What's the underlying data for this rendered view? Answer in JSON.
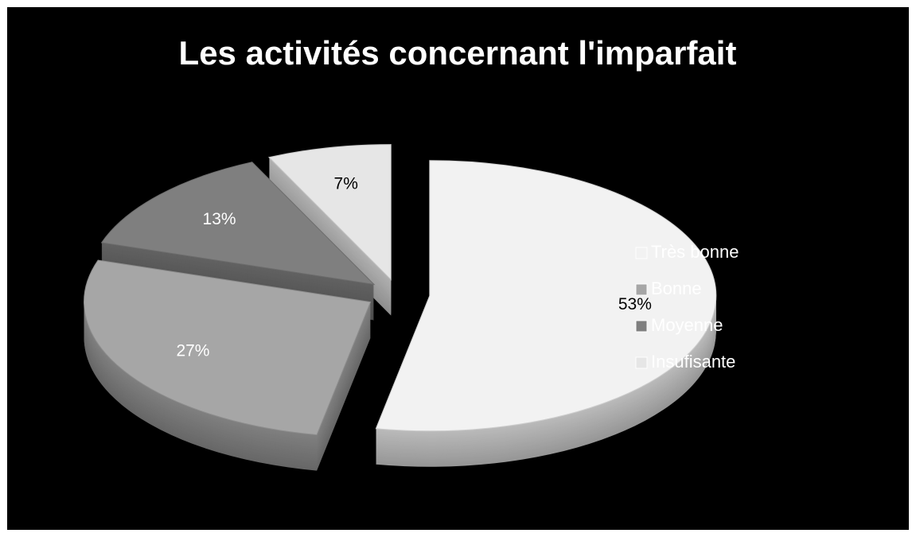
{
  "chart_data": {
    "type": "pie",
    "title": "Les activités concernant l'imparfait",
    "categories": [
      "Très bonne",
      "Bonne",
      "Moyenne",
      "Insufisante"
    ],
    "values": [
      53,
      27,
      13,
      7
    ],
    "value_labels": [
      "53%",
      "27%",
      "13%",
      "7%"
    ],
    "colors": [
      "#f2f2f2",
      "#a6a6a6",
      "#7f7f7f",
      "#e6e6e6"
    ],
    "legend": "right"
  }
}
